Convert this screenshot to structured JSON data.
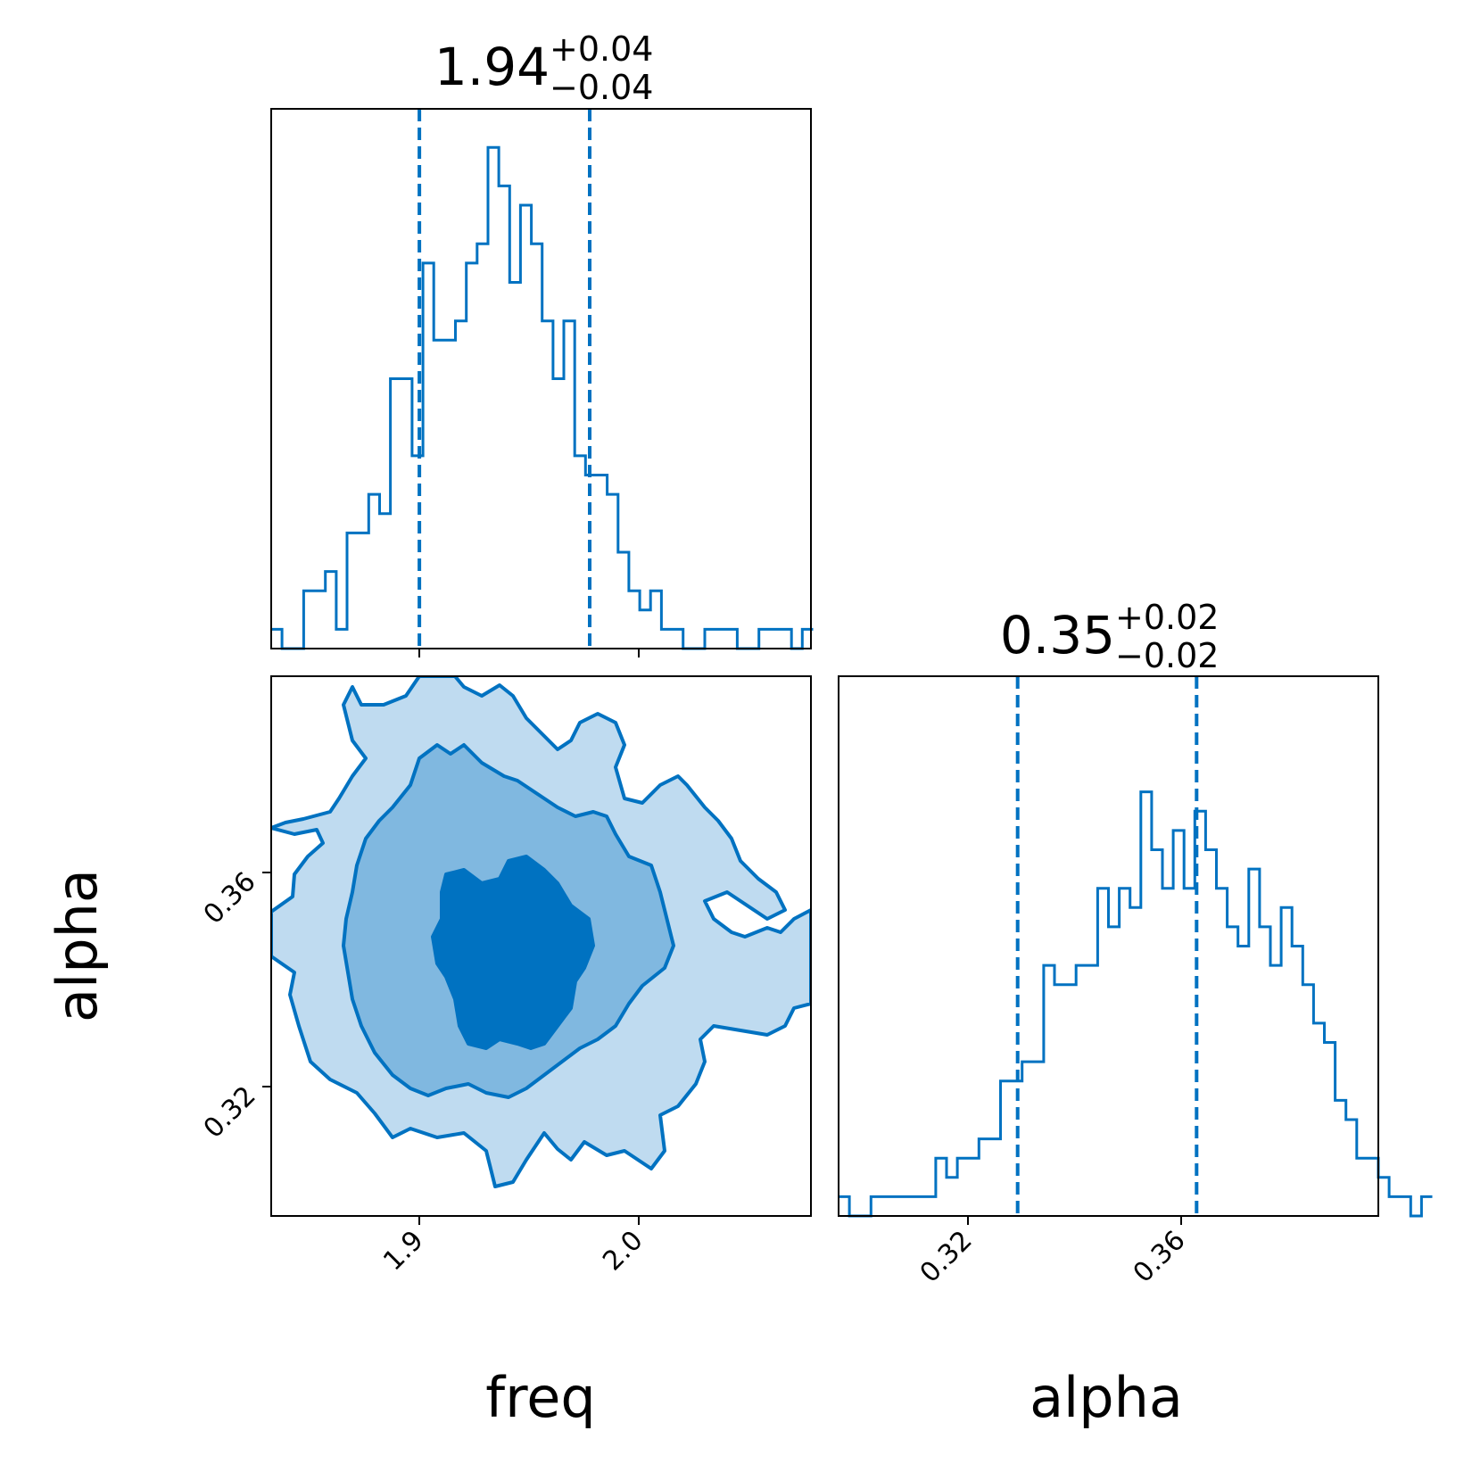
{
  "colors": {
    "primary": "#0072c1",
    "contour_light": "#bfdbf0",
    "contour_mid": "#80b8e0",
    "contour_dark": "#0072c1"
  },
  "chart_data": [
    {
      "panel": "hist-freq",
      "type": "step-histogram",
      "title": {
        "value": "1.94",
        "plus": "+0.04",
        "minus": "−0.04"
      },
      "xlim": [
        1.833,
        2.077
      ],
      "ylim": [
        0,
        28
      ],
      "xlabel": "",
      "bin_edges_start": 1.833,
      "bin_width": 0.0049,
      "counts": [
        1,
        0,
        0,
        3,
        3,
        4,
        1,
        6,
        6,
        8,
        7,
        14,
        14,
        10,
        20,
        16,
        16,
        17,
        20,
        21,
        26,
        24,
        19,
        23,
        21,
        17,
        14,
        17,
        10,
        9,
        9,
        8,
        5,
        3,
        2,
        3,
        1,
        1,
        0,
        0,
        1,
        1,
        1,
        0,
        0,
        1,
        1,
        1,
        0,
        1
      ],
      "quantiles": [
        1.9,
        1.977
      ],
      "x_ticks": [
        "1.9",
        "2.0"
      ]
    },
    {
      "panel": "contour-freq-alpha",
      "type": "contour",
      "xlim": [
        1.833,
        2.077
      ],
      "ylim": [
        0.2965,
        0.3975
      ],
      "xlabel": "freq",
      "ylabel": "alpha",
      "x_ticks": [
        "1.9",
        "2.0"
      ],
      "y_ticks": [
        "0.32",
        "0.36"
      ],
      "center": [
        1.944,
        0.345
      ],
      "sigma": [
        0.04,
        0.02
      ]
    },
    {
      "panel": "hist-alpha",
      "type": "step-histogram",
      "title": {
        "value": "0.35",
        "plus": "+0.02",
        "minus": "−0.02"
      },
      "xlim": [
        0.2965,
        0.3975
      ],
      "ylim": [
        0,
        28
      ],
      "xlabel": "alpha",
      "bin_edges_start": 0.2965,
      "bin_width": 0.00202,
      "counts": [
        1,
        0,
        0,
        1,
        1,
        1,
        1,
        1,
        1,
        3,
        2,
        3,
        3,
        4,
        4,
        7,
        7,
        8,
        8,
        13,
        12,
        12,
        13,
        13,
        17,
        15,
        17,
        16,
        22,
        19,
        17,
        20,
        17,
        21,
        19,
        17,
        15,
        14,
        18,
        15,
        13,
        16,
        14,
        12,
        10,
        9,
        6,
        5,
        3,
        3,
        2,
        1,
        1,
        0,
        1
      ],
      "quantiles": [
        0.33,
        0.3635
      ],
      "x_ticks": [
        "0.32",
        "0.36"
      ]
    }
  ]
}
